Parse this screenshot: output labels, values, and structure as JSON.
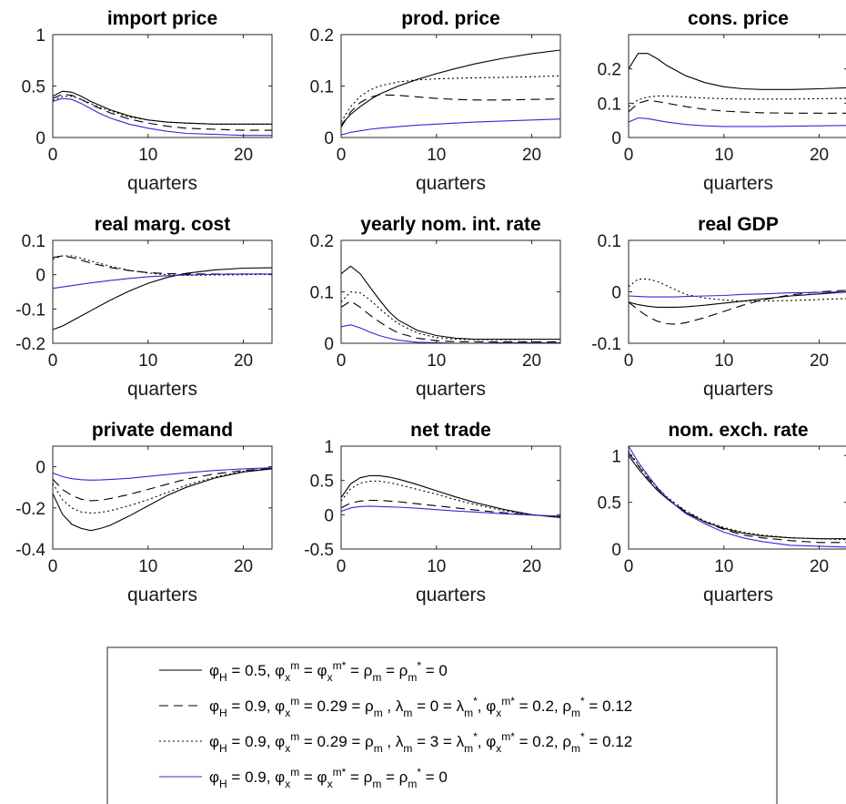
{
  "chart_data": {
    "type": "line",
    "x_ticks": [
      0,
      10,
      20
    ],
    "xlim": [
      0,
      23
    ],
    "series_styles": [
      {
        "color": "#000000",
        "dash": "solid"
      },
      {
        "color": "#000000",
        "dash": "dashed"
      },
      {
        "color": "#000000",
        "dash": "dotted"
      },
      {
        "color": "#2b2bd9",
        "dash": "solid"
      }
    ],
    "legend": {
      "placement": "bottom",
      "entries": [
        "φH = 0.5, φxm = φxm* = ρm = ρm* = 0",
        "φH = 0.9, φxm = 0.29 = ρm , λm = 0 = λm*, φxm* = 0.2, ρm* = 0.12",
        "φH = 0.9, φxm = 0.29 = ρm , λm = 3 = λm*, φxm* = 0.2, ρm* = 0.12",
        "φH = 0.9, φxm = φxm* = ρm = ρm* = 0"
      ]
    },
    "panels": [
      {
        "title": "import price",
        "xlabel": "quarters",
        "ylim": [
          0,
          1
        ],
        "y_ticks": [
          0,
          0.5,
          1
        ],
        "y_tick_labels": [
          "0",
          "0.5",
          "1"
        ],
        "x": [
          0,
          1,
          2,
          3,
          4,
          5,
          6,
          8,
          10,
          12,
          14,
          17,
          20,
          23
        ],
        "series": [
          {
            "values": [
              0.4,
              0.45,
              0.44,
              0.4,
              0.35,
              0.31,
              0.27,
              0.21,
              0.17,
              0.15,
              0.14,
              0.13,
              0.13,
              0.13
            ]
          },
          {
            "values": [
              0.38,
              0.42,
              0.41,
              0.37,
              0.32,
              0.28,
              0.24,
              0.18,
              0.14,
              0.11,
              0.09,
              0.08,
              0.07,
              0.07
            ]
          },
          {
            "values": [
              0.36,
              0.4,
              0.4,
              0.37,
              0.33,
              0.29,
              0.26,
              0.2,
              0.17,
              0.15,
              0.14,
              0.13,
              0.13,
              0.13
            ]
          },
          {
            "values": [
              0.35,
              0.38,
              0.37,
              0.33,
              0.28,
              0.23,
              0.19,
              0.13,
              0.09,
              0.06,
              0.04,
              0.03,
              0.02,
              0.02
            ]
          }
        ]
      },
      {
        "title": "prod. price",
        "xlabel": "quarters",
        "ylim": [
          0,
          0.2
        ],
        "y_ticks": [
          0,
          0.1,
          0.2
        ],
        "y_tick_labels": [
          "0",
          "0.1",
          "0.2"
        ],
        "x": [
          0,
          1,
          2,
          3,
          4,
          6,
          8,
          10,
          12,
          14,
          17,
          20,
          23
        ],
        "series": [
          {
            "values": [
              0.025,
              0.045,
              0.06,
              0.073,
              0.084,
              0.1,
              0.113,
              0.124,
              0.134,
              0.143,
              0.154,
              0.163,
              0.17
            ]
          },
          {
            "values": [
              0.02,
              0.05,
              0.068,
              0.078,
              0.083,
              0.082,
              0.079,
              0.076,
              0.074,
              0.073,
              0.073,
              0.074,
              0.075
            ]
          },
          {
            "values": [
              0.03,
              0.06,
              0.08,
              0.092,
              0.1,
              0.108,
              0.112,
              0.114,
              0.115,
              0.116,
              0.117,
              0.118,
              0.12
            ]
          },
          {
            "values": [
              0.005,
              0.01,
              0.013,
              0.016,
              0.018,
              0.021,
              0.024,
              0.026,
              0.028,
              0.03,
              0.032,
              0.034,
              0.036
            ]
          }
        ]
      },
      {
        "title": "cons. price",
        "xlabel": "quarters",
        "ylim": [
          0,
          0.3
        ],
        "y_ticks": [
          0,
          0.1,
          0.2
        ],
        "y_tick_labels": [
          "0",
          "0.1",
          "0.2"
        ],
        "x": [
          0,
          1,
          2,
          3,
          4,
          6,
          8,
          10,
          12,
          14,
          17,
          20,
          23
        ],
        "series": [
          {
            "values": [
              0.2,
              0.245,
              0.245,
              0.23,
              0.21,
              0.18,
              0.16,
              0.148,
              0.142,
              0.14,
              0.14,
              0.142,
              0.145
            ]
          },
          {
            "values": [
              0.075,
              0.1,
              0.108,
              0.105,
              0.1,
              0.09,
              0.082,
              0.077,
              0.074,
              0.072,
              0.071,
              0.071,
              0.071
            ]
          },
          {
            "values": [
              0.09,
              0.11,
              0.118,
              0.121,
              0.121,
              0.118,
              0.115,
              0.113,
              0.112,
              0.112,
              0.112,
              0.113,
              0.114
            ]
          },
          {
            "values": [
              0.045,
              0.057,
              0.055,
              0.05,
              0.045,
              0.038,
              0.034,
              0.032,
              0.032,
              0.032,
              0.033,
              0.034,
              0.035
            ]
          }
        ]
      },
      {
        "title": "real marg. cost",
        "xlabel": "quarters",
        "ylim": [
          -0.2,
          0.1
        ],
        "y_ticks": [
          -0.2,
          -0.1,
          0,
          0.1
        ],
        "y_tick_labels": [
          "-0.2",
          "-0.1",
          "0",
          "0.1"
        ],
        "x": [
          0,
          1,
          2,
          3,
          4,
          6,
          8,
          10,
          12,
          14,
          17,
          20,
          23
        ],
        "series": [
          {
            "values": [
              -0.16,
              -0.15,
              -0.135,
              -0.12,
              -0.105,
              -0.075,
              -0.048,
              -0.025,
              -0.008,
              0.004,
              0.014,
              0.019,
              0.02
            ]
          },
          {
            "values": [
              0.05,
              0.055,
              0.05,
              0.042,
              0.034,
              0.021,
              0.012,
              0.006,
              0.003,
              0.002,
              0.002,
              0.002,
              0.002
            ]
          },
          {
            "values": [
              0.045,
              0.055,
              0.055,
              0.048,
              0.04,
              0.025,
              0.013,
              0.005,
              0.0,
              -0.002,
              -0.001,
              0.0,
              0.001
            ]
          },
          {
            "values": [
              -0.04,
              -0.036,
              -0.032,
              -0.028,
              -0.024,
              -0.017,
              -0.011,
              -0.006,
              -0.003,
              -0.001,
              0.001,
              0.002,
              0.002
            ]
          }
        ]
      },
      {
        "title": "yearly nom. int. rate",
        "xlabel": "quarters",
        "ylim": [
          0,
          0.2
        ],
        "y_ticks": [
          0,
          0.1,
          0.2
        ],
        "y_tick_labels": [
          "0",
          "0.1",
          "0.2"
        ],
        "x": [
          0,
          1,
          2,
          3,
          4,
          5,
          6,
          8,
          10,
          12,
          14,
          17,
          20,
          23
        ],
        "series": [
          {
            "values": [
              0.135,
              0.15,
              0.135,
              0.11,
              0.085,
              0.062,
              0.045,
              0.025,
              0.015,
              0.01,
              0.008,
              0.008,
              0.008,
              0.008
            ]
          },
          {
            "values": [
              0.07,
              0.082,
              0.07,
              0.055,
              0.042,
              0.03,
              0.02,
              0.01,
              0.005,
              0.003,
              0.003,
              0.003,
              0.003,
              0.003
            ]
          },
          {
            "values": [
              0.08,
              0.1,
              0.098,
              0.085,
              0.068,
              0.052,
              0.038,
              0.02,
              0.011,
              0.008,
              0.007,
              0.007,
              0.008,
              0.008
            ]
          },
          {
            "values": [
              0.032,
              0.036,
              0.03,
              0.022,
              0.015,
              0.01,
              0.006,
              0.002,
              0.001,
              0.0,
              0.0,
              0.001,
              0.001,
              0.001
            ]
          }
        ]
      },
      {
        "title": "real GDP",
        "xlabel": "quarters",
        "ylim": [
          -0.1,
          0.1
        ],
        "y_ticks": [
          -0.1,
          0,
          0.1
        ],
        "y_tick_labels": [
          "-0.1",
          "0",
          "0.1"
        ],
        "x": [
          0,
          1,
          2,
          3,
          4,
          5,
          6,
          8,
          10,
          12,
          14,
          17,
          20,
          23
        ],
        "series": [
          {
            "values": [
              -0.02,
              -0.025,
              -0.028,
              -0.03,
              -0.03,
              -0.03,
              -0.029,
              -0.026,
              -0.022,
              -0.018,
              -0.014,
              -0.008,
              -0.004,
              0.0
            ]
          },
          {
            "values": [
              -0.02,
              -0.035,
              -0.048,
              -0.057,
              -0.062,
              -0.063,
              -0.06,
              -0.05,
              -0.038,
              -0.026,
              -0.016,
              -0.006,
              0.0,
              0.003
            ]
          },
          {
            "values": [
              0.01,
              0.025,
              0.025,
              0.02,
              0.012,
              0.003,
              -0.005,
              -0.012,
              -0.016,
              -0.018,
              -0.018,
              -0.017,
              -0.015,
              -0.013
            ]
          },
          {
            "values": [
              -0.008,
              -0.009,
              -0.01,
              -0.01,
              -0.01,
              -0.01,
              -0.009,
              -0.008,
              -0.007,
              -0.005,
              -0.004,
              -0.002,
              -0.001,
              0.0
            ]
          }
        ]
      },
      {
        "title": "private demand",
        "xlabel": "quarters",
        "ylim": [
          -0.4,
          0.1
        ],
        "y_ticks": [
          -0.4,
          -0.2,
          0
        ],
        "y_tick_labels": [
          "-0.4",
          "-0.2",
          "0"
        ],
        "x": [
          0,
          1,
          2,
          3,
          4,
          5,
          6,
          8,
          10,
          12,
          14,
          17,
          20,
          23
        ],
        "series": [
          {
            "values": [
              -0.13,
              -0.23,
              -0.28,
              -0.3,
              -0.31,
              -0.3,
              -0.285,
              -0.24,
              -0.19,
              -0.14,
              -0.1,
              -0.055,
              -0.025,
              -0.01
            ]
          },
          {
            "values": [
              -0.06,
              -0.11,
              -0.14,
              -0.158,
              -0.165,
              -0.163,
              -0.155,
              -0.135,
              -0.11,
              -0.085,
              -0.06,
              -0.035,
              -0.018,
              -0.008
            ]
          },
          {
            "values": [
              -0.08,
              -0.16,
              -0.2,
              -0.22,
              -0.225,
              -0.222,
              -0.214,
              -0.19,
              -0.16,
              -0.125,
              -0.09,
              -0.05,
              -0.022,
              -0.008
            ]
          },
          {
            "values": [
              -0.03,
              -0.048,
              -0.058,
              -0.063,
              -0.065,
              -0.064,
              -0.062,
              -0.056,
              -0.047,
              -0.038,
              -0.029,
              -0.018,
              -0.01,
              -0.005
            ]
          }
        ]
      },
      {
        "title": "net trade",
        "xlabel": "quarters",
        "ylim": [
          -0.5,
          1
        ],
        "y_ticks": [
          -0.5,
          0,
          0.5,
          1
        ],
        "y_tick_labels": [
          "-0.5",
          "0",
          "0.5",
          "1"
        ],
        "x": [
          0,
          1,
          2,
          3,
          4,
          5,
          6,
          8,
          10,
          12,
          14,
          17,
          20,
          23
        ],
        "series": [
          {
            "values": [
              0.25,
              0.45,
              0.54,
              0.57,
              0.57,
              0.55,
              0.52,
              0.44,
              0.35,
              0.26,
              0.18,
              0.08,
              0.0,
              -0.04
            ]
          },
          {
            "values": [
              0.1,
              0.17,
              0.2,
              0.21,
              0.21,
              0.2,
              0.19,
              0.16,
              0.13,
              0.1,
              0.07,
              0.03,
              0.0,
              -0.03
            ]
          },
          {
            "values": [
              0.2,
              0.38,
              0.46,
              0.49,
              0.49,
              0.47,
              0.44,
              0.37,
              0.3,
              0.22,
              0.15,
              0.06,
              0.0,
              -0.04
            ]
          },
          {
            "values": [
              0.05,
              0.1,
              0.12,
              0.125,
              0.12,
              0.115,
              0.11,
              0.095,
              0.075,
              0.055,
              0.04,
              0.015,
              -0.005,
              -0.02
            ]
          }
        ]
      },
      {
        "title": "nom. exch. rate",
        "xlabel": "quarters",
        "ylim": [
          0,
          1.1
        ],
        "y_ticks": [
          0,
          0.5,
          1
        ],
        "y_tick_labels": [
          "0",
          "0.5",
          "1"
        ],
        "x": [
          0,
          1,
          2,
          3,
          4,
          5,
          6,
          8,
          10,
          12,
          14,
          17,
          20,
          23
        ],
        "series": [
          {
            "values": [
              1.0,
              0.86,
              0.74,
              0.63,
              0.54,
              0.46,
              0.39,
              0.29,
              0.22,
              0.17,
              0.14,
              0.12,
              0.11,
              0.11
            ]
          },
          {
            "values": [
              1.03,
              0.89,
              0.76,
              0.65,
              0.55,
              0.47,
              0.4,
              0.29,
              0.21,
              0.15,
              0.12,
              0.09,
              0.07,
              0.07
            ]
          },
          {
            "values": [
              1.05,
              0.9,
              0.77,
              0.66,
              0.56,
              0.48,
              0.41,
              0.3,
              0.23,
              0.18,
              0.15,
              0.12,
              0.11,
              0.1
            ]
          },
          {
            "values": [
              1.1,
              0.93,
              0.79,
              0.66,
              0.55,
              0.46,
              0.38,
              0.27,
              0.18,
              0.12,
              0.08,
              0.04,
              0.03,
              0.02
            ]
          }
        ]
      }
    ]
  }
}
